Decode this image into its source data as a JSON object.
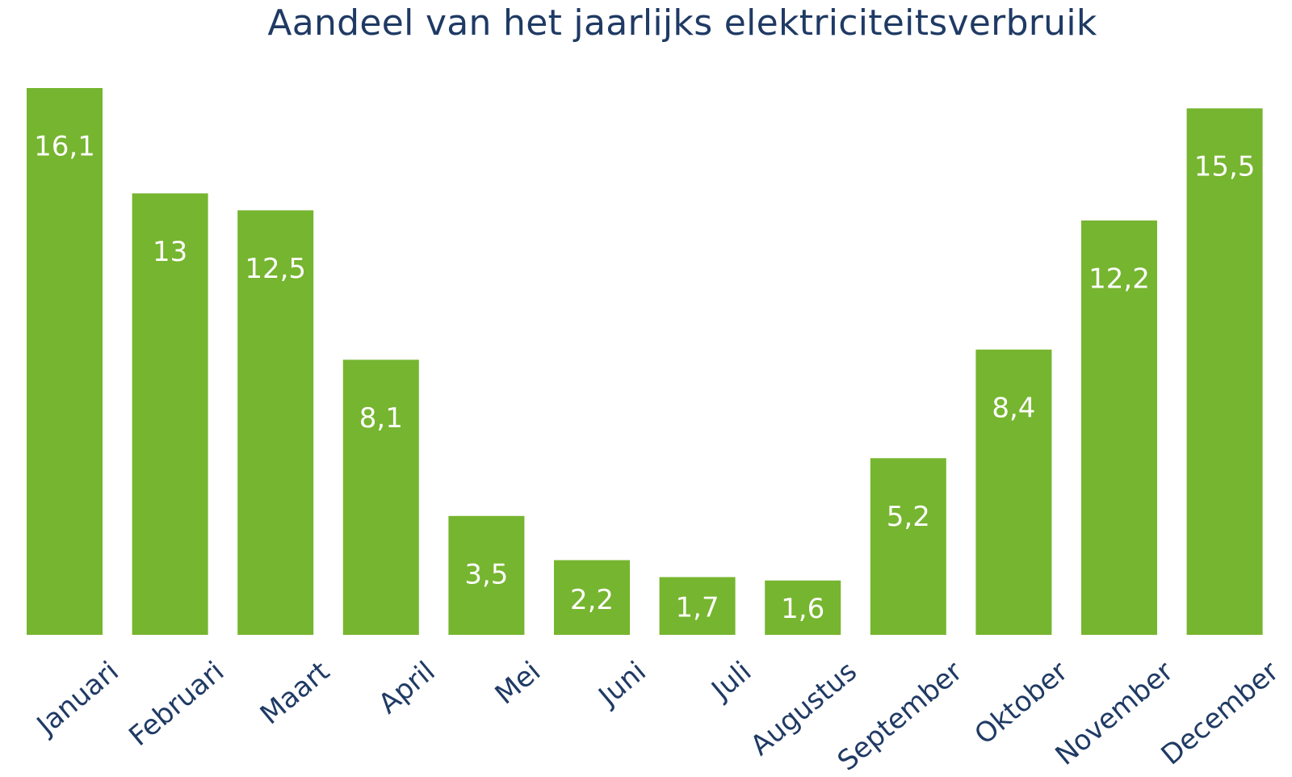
{
  "chart_data": {
    "type": "bar",
    "title": "Aandeel van het jaarlijks elektriciteitsverbruik",
    "categories": [
      "Januari",
      "Februari",
      "Maart",
      "April",
      "Mei",
      "Juni",
      "Juli",
      "Augustus",
      "September",
      "Oktober",
      "November",
      "December"
    ],
    "values": [
      16.1,
      13,
      12.5,
      8.1,
      3.5,
      2.2,
      1.7,
      1.6,
      5.2,
      8.4,
      12.2,
      15.5
    ],
    "value_labels": [
      "16,1",
      "13",
      "12,5",
      "8,1",
      "3,5",
      "2,2",
      "1,7",
      "1,6",
      "5,2",
      "8,4",
      "12,2",
      "15,5"
    ],
    "xlabel": "",
    "ylabel": "",
    "ylim": [
      0,
      16.1
    ],
    "grid": false,
    "bar_color": "#76b52f",
    "text_color": "#1f3a64",
    "value_label_color": "#ffffff"
  }
}
